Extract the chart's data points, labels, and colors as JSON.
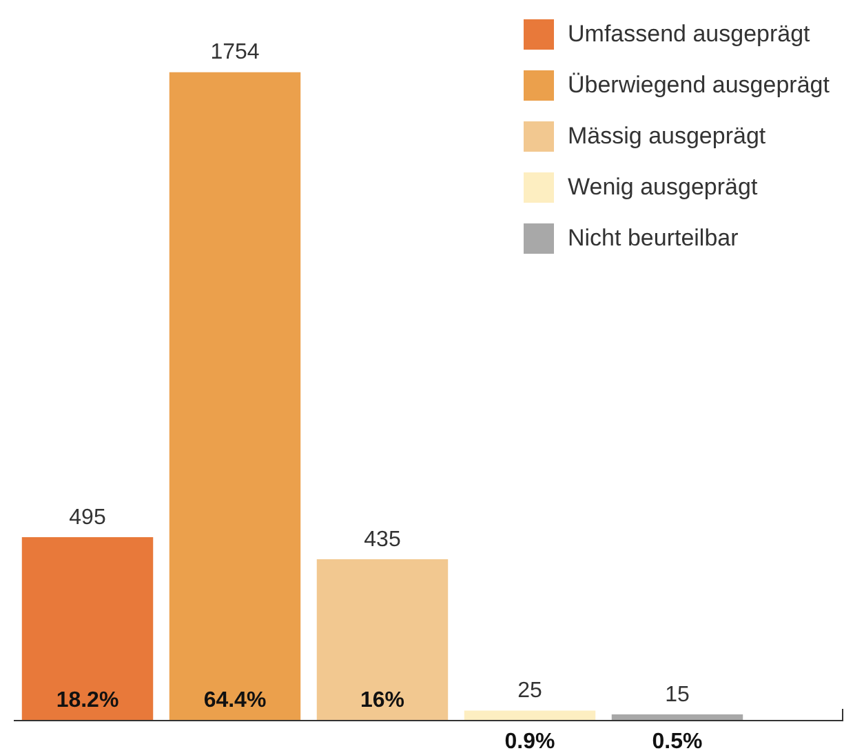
{
  "chart_data": {
    "type": "bar",
    "categories": [
      null,
      null,
      null,
      null,
      null
    ],
    "series": [
      {
        "name": "Umfassend ausgeprägt",
        "color": "#e8793a",
        "values": [
          495,
          null,
          null,
          null,
          null
        ]
      },
      {
        "name": "Überwiegend ausgeprägt",
        "color": "#eba04c",
        "values": [
          null,
          1754,
          null,
          null,
          null
        ]
      },
      {
        "name": "Mässig ausgeprägt",
        "color": "#f2c890",
        "values": [
          null,
          null,
          435,
          null,
          null
        ]
      },
      {
        "name": "Wenig ausgeprägt",
        "color": "#fdeec1",
        "values": [
          null,
          null,
          null,
          25,
          null
        ]
      },
      {
        "name": "Nicht beurteilbar",
        "color": "#a8a8a8",
        "values": [
          null,
          null,
          null,
          null,
          15
        ]
      }
    ],
    "stacked": true,
    "data_labels": true,
    "annotations": [
      "18.2%",
      "64.4%",
      "16%",
      "0.9%",
      "0.5%"
    ],
    "legend": "top right",
    "tick_labels": false,
    "grid": false
  }
}
